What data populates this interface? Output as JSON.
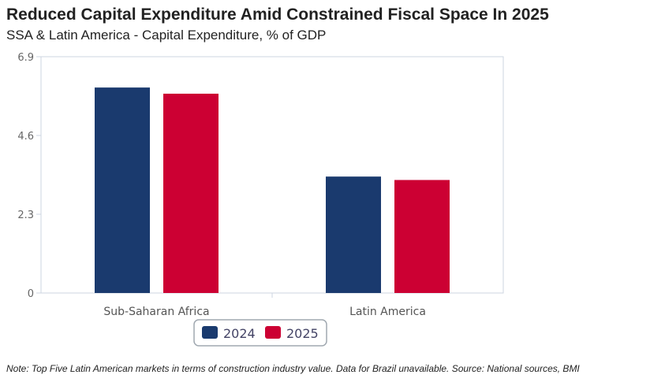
{
  "header": {
    "title": "Reduced Capital Expenditure Amid Constrained Fiscal Space In 2025",
    "subtitle": "SSA & Latin America - Capital Expenditure, % of GDP"
  },
  "footer": {
    "note": "Note: Top Five Latin American markets in terms of construction industry value. Data for Brazil unavailable. Source: National sources, BMI"
  },
  "colors": {
    "series_2024": "#1a3a6e",
    "series_2025": "#cc0033"
  },
  "chart_data": {
    "type": "bar",
    "categories": [
      "Sub-Saharan Africa",
      "Latin America"
    ],
    "series": [
      {
        "name": "2024",
        "values": [
          6.0,
          3.4
        ]
      },
      {
        "name": "2025",
        "values": [
          5.82,
          3.3
        ]
      }
    ],
    "ylim": [
      0,
      6.9
    ],
    "yticks": [
      "0",
      "2.3",
      "4.6",
      "6.9"
    ],
    "grid": false,
    "legend": "bottom-center",
    "title": "Reduced Capital Expenditure Amid Constrained Fiscal Space In 2025",
    "subtitle": "SSA & Latin America - Capital Expenditure, % of GDP"
  }
}
